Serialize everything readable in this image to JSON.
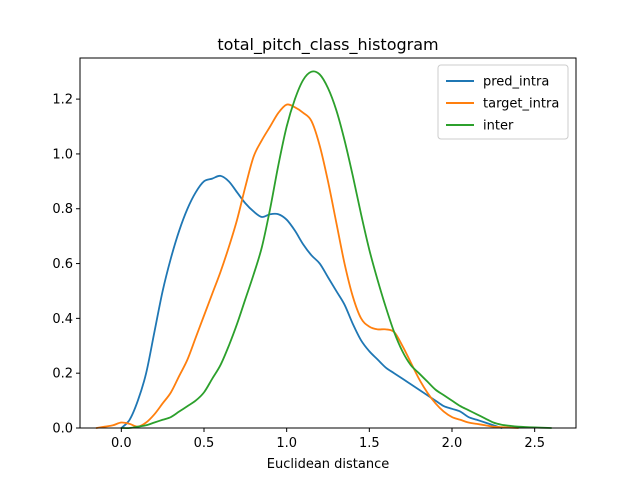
{
  "chart_data": {
    "type": "line",
    "title": "total_pitch_class_histogram",
    "xlabel": "Euclidean distance",
    "ylabel": "",
    "xlim": [
      -0.25,
      2.75
    ],
    "ylim": [
      0.0,
      1.35
    ],
    "xticks": [
      0.0,
      0.5,
      1.0,
      1.5,
      2.0,
      2.5
    ],
    "xtick_labels": [
      "0.0",
      "0.5",
      "1.0",
      "1.5",
      "2.0",
      "2.5"
    ],
    "yticks": [
      0.0,
      0.2,
      0.4,
      0.6,
      0.8,
      1.0,
      1.2
    ],
    "ytick_labels": [
      "0.0",
      "0.2",
      "0.4",
      "0.6",
      "0.8",
      "1.0",
      "1.2"
    ],
    "grid": false,
    "legend_position": "top-right",
    "series": [
      {
        "name": "pred_intra",
        "color": "#1f77b4",
        "x": [
          0.0,
          0.05,
          0.1,
          0.15,
          0.2,
          0.25,
          0.3,
          0.35,
          0.4,
          0.45,
          0.5,
          0.55,
          0.6,
          0.65,
          0.7,
          0.75,
          0.8,
          0.85,
          0.9,
          0.95,
          1.0,
          1.05,
          1.1,
          1.15,
          1.2,
          1.25,
          1.3,
          1.35,
          1.4,
          1.45,
          1.5,
          1.55,
          1.6,
          1.65,
          1.7,
          1.75,
          1.8,
          1.85,
          1.9,
          1.95,
          2.0,
          2.05,
          2.1,
          2.15,
          2.2,
          2.25,
          2.3
        ],
        "y": [
          0.0,
          0.03,
          0.1,
          0.2,
          0.35,
          0.5,
          0.62,
          0.72,
          0.8,
          0.86,
          0.9,
          0.91,
          0.92,
          0.9,
          0.86,
          0.82,
          0.79,
          0.77,
          0.78,
          0.78,
          0.76,
          0.72,
          0.67,
          0.63,
          0.6,
          0.55,
          0.5,
          0.45,
          0.38,
          0.32,
          0.28,
          0.25,
          0.22,
          0.2,
          0.18,
          0.16,
          0.14,
          0.12,
          0.1,
          0.08,
          0.07,
          0.06,
          0.04,
          0.03,
          0.02,
          0.01,
          0.0
        ]
      },
      {
        "name": "target_intra",
        "color": "#ff7f0e",
        "x": [
          -0.15,
          -0.1,
          -0.05,
          0.0,
          0.05,
          0.1,
          0.15,
          0.2,
          0.25,
          0.3,
          0.35,
          0.4,
          0.45,
          0.5,
          0.55,
          0.6,
          0.65,
          0.7,
          0.75,
          0.8,
          0.85,
          0.9,
          0.95,
          1.0,
          1.05,
          1.1,
          1.15,
          1.2,
          1.25,
          1.3,
          1.35,
          1.4,
          1.45,
          1.5,
          1.55,
          1.6,
          1.65,
          1.7,
          1.75,
          1.8,
          1.85,
          1.9,
          1.95,
          2.0,
          2.05,
          2.1,
          2.15,
          2.2,
          2.25,
          2.3,
          2.4
        ],
        "y": [
          0.0,
          0.005,
          0.01,
          0.02,
          0.015,
          0.005,
          0.02,
          0.05,
          0.09,
          0.13,
          0.19,
          0.25,
          0.33,
          0.41,
          0.49,
          0.57,
          0.66,
          0.76,
          0.88,
          0.99,
          1.05,
          1.1,
          1.15,
          1.18,
          1.17,
          1.15,
          1.12,
          1.03,
          0.9,
          0.75,
          0.6,
          0.48,
          0.4,
          0.37,
          0.36,
          0.36,
          0.35,
          0.3,
          0.24,
          0.18,
          0.13,
          0.09,
          0.06,
          0.04,
          0.03,
          0.02,
          0.015,
          0.01,
          0.005,
          0.003,
          0.0
        ]
      },
      {
        "name": "inter",
        "color": "#2ca02c",
        "x": [
          0.0,
          0.05,
          0.1,
          0.15,
          0.2,
          0.25,
          0.3,
          0.35,
          0.4,
          0.45,
          0.5,
          0.55,
          0.6,
          0.65,
          0.7,
          0.75,
          0.8,
          0.85,
          0.9,
          0.95,
          1.0,
          1.05,
          1.1,
          1.15,
          1.2,
          1.25,
          1.3,
          1.35,
          1.4,
          1.45,
          1.5,
          1.55,
          1.6,
          1.65,
          1.7,
          1.75,
          1.8,
          1.85,
          1.9,
          1.95,
          2.0,
          2.05,
          2.1,
          2.15,
          2.2,
          2.25,
          2.3,
          2.35,
          2.4,
          2.5,
          2.6
        ],
        "y": [
          0.0,
          0.0,
          0.005,
          0.01,
          0.02,
          0.03,
          0.04,
          0.06,
          0.08,
          0.1,
          0.13,
          0.18,
          0.23,
          0.3,
          0.38,
          0.47,
          0.56,
          0.66,
          0.8,
          0.96,
          1.1,
          1.2,
          1.27,
          1.3,
          1.29,
          1.24,
          1.16,
          1.05,
          0.92,
          0.78,
          0.65,
          0.54,
          0.44,
          0.35,
          0.28,
          0.23,
          0.2,
          0.17,
          0.14,
          0.12,
          0.1,
          0.08,
          0.065,
          0.05,
          0.035,
          0.02,
          0.012,
          0.008,
          0.005,
          0.002,
          0.0
        ]
      }
    ]
  }
}
